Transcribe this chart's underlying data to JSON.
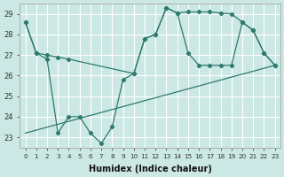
{
  "xlabel": "Humidex (Indice chaleur)",
  "bg_color": "#cce8e4",
  "line_color": "#2d7a6e",
  "grid_color": "#ffffff",
  "xlim": [
    -0.5,
    23.5
  ],
  "ylim": [
    22.5,
    29.5
  ],
  "yticks": [
    23,
    24,
    25,
    26,
    27,
    28,
    29
  ],
  "xticks": [
    0,
    1,
    2,
    3,
    4,
    5,
    6,
    7,
    8,
    9,
    10,
    11,
    12,
    13,
    14,
    15,
    16,
    17,
    18,
    19,
    20,
    21,
    22,
    23
  ],
  "line1_x": [
    0,
    1,
    2,
    3,
    4,
    10,
    11,
    12,
    13,
    14,
    15,
    16,
    17,
    18,
    19,
    20,
    21,
    22,
    23
  ],
  "line1_y": [
    28.6,
    27.1,
    27.0,
    26.9,
    26.8,
    26.1,
    27.8,
    28.0,
    29.3,
    29.05,
    29.1,
    29.1,
    29.1,
    29.05,
    29.0,
    28.6,
    28.2,
    27.1,
    26.5
  ],
  "line2_x": [
    0,
    1,
    2,
    3,
    4,
    5,
    6,
    7,
    8,
    9,
    10,
    11,
    12,
    13,
    14,
    15,
    16,
    17,
    18,
    19,
    20,
    21,
    22,
    23
  ],
  "line2_y": [
    28.6,
    27.1,
    26.8,
    23.2,
    24.0,
    24.0,
    23.2,
    22.7,
    23.5,
    25.8,
    26.1,
    27.8,
    28.0,
    29.3,
    29.05,
    27.1,
    26.5,
    26.5,
    26.5,
    26.5,
    28.6,
    28.2,
    27.1,
    26.5
  ],
  "line3_x": [
    0,
    23
  ],
  "line3_y": [
    23.2,
    26.5
  ]
}
